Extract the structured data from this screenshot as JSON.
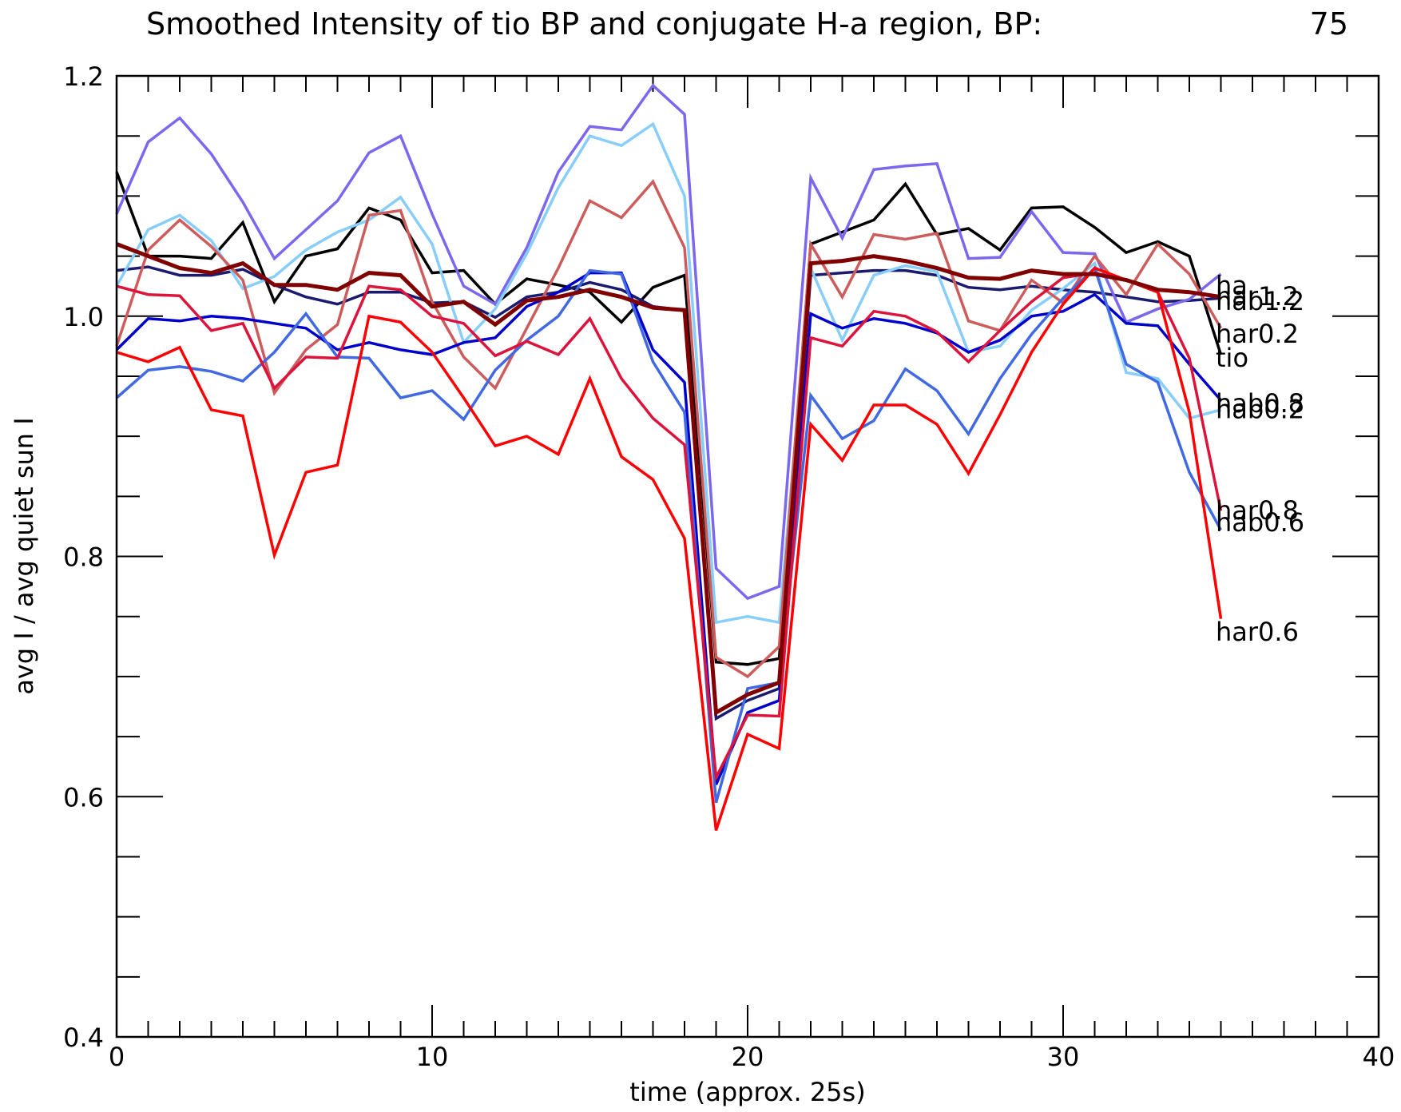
{
  "chart_data": {
    "type": "line",
    "title": "Smoothed Intensity of tio BP and conjugate H-a region, BP:",
    "title_value": "75",
    "xlabel": "time (approx. 25s)",
    "ylabel": "avg I / avg quiet sun I",
    "xlim": [
      0,
      40
    ],
    "ylim": [
      0.4,
      1.2
    ],
    "x_tick_labels": [
      "0",
      "10",
      "20",
      "30",
      "40"
    ],
    "y_tick_labels": [
      "0.4",
      "0.6",
      "0.8",
      "1.0",
      "1.2"
    ],
    "grid": false,
    "legend": "labels at line ends (right)",
    "x": [
      0,
      1,
      2,
      3,
      4,
      5,
      6,
      7,
      8,
      9,
      10,
      11,
      12,
      13,
      14,
      15,
      16,
      17,
      18,
      19,
      20,
      21,
      22,
      23,
      24,
      25,
      26,
      27,
      28,
      29,
      30,
      31,
      32,
      33,
      34,
      35
    ],
    "series": [
      {
        "name": "tio",
        "color": "#000000",
        "values": [
          1.12,
          1.05,
          1.05,
          1.048,
          1.078,
          1.012,
          1.05,
          1.056,
          1.09,
          1.08,
          1.036,
          1.038,
          1.01,
          1.031,
          1.026,
          1.02,
          0.995,
          1.024,
          1.034,
          0.712,
          0.71,
          0.715,
          1.06,
          1.07,
          1.08,
          1.11,
          1.068,
          1.073,
          1.055,
          1.09,
          1.091,
          1.074,
          1.053,
          1.062,
          1.05,
          0.968
        ]
      },
      {
        "name": "hab1.2",
        "color": "#1a1a6e",
        "values": [
          1.038,
          1.041,
          1.034,
          1.034,
          1.039,
          1.026,
          1.016,
          1.01,
          1.02,
          1.02,
          1.011,
          1.012,
          0.999,
          1.016,
          1.02,
          1.028,
          1.022,
          1.008,
          1.005,
          0.665,
          0.68,
          0.69,
          1.034,
          1.036,
          1.038,
          1.038,
          1.034,
          1.024,
          1.022,
          1.025,
          1.022,
          1.02,
          1.016,
          1.012,
          1.013,
          1.015
        ]
      },
      {
        "name": "ha",
        "color": "#7b68ee",
        "values": [
          1.085,
          1.145,
          1.165,
          1.135,
          1.095,
          1.048,
          1.072,
          1.096,
          1.136,
          1.15,
          1.085,
          1.025,
          1.01,
          1.057,
          1.12,
          1.158,
          1.155,
          1.192,
          1.168,
          0.79,
          0.765,
          0.775,
          1.115,
          1.065,
          1.122,
          1.125,
          1.127,
          1.048,
          1.049,
          1.087,
          1.053,
          1.052,
          0.995,
          1.006,
          1.014,
          1.035
        ]
      },
      {
        "name": "hab0.2",
        "color": "#87cefa",
        "values": [
          1.025,
          1.072,
          1.084,
          1.063,
          1.023,
          1.033,
          1.055,
          1.07,
          1.08,
          1.099,
          1.06,
          0.978,
          1.006,
          1.052,
          1.107,
          1.15,
          1.142,
          1.16,
          1.1,
          0.745,
          0.75,
          0.745,
          1.04,
          0.98,
          1.034,
          1.042,
          1.037,
          0.97,
          0.975,
          1.005,
          1.023,
          1.044,
          0.953,
          0.948,
          0.915,
          0.922
        ]
      },
      {
        "name": "har0.2",
        "color": "#cd5c5c",
        "values": [
          0.975,
          1.055,
          1.08,
          1.058,
          1.03,
          0.936,
          0.972,
          0.993,
          1.084,
          1.088,
          1.012,
          0.966,
          0.94,
          0.99,
          1.04,
          1.096,
          1.082,
          1.112,
          1.057,
          0.716,
          0.7,
          0.725,
          1.06,
          1.016,
          1.068,
          1.064,
          1.069,
          0.996,
          0.988,
          1.03,
          1.011,
          1.05,
          1.018,
          1.06,
          1.035,
          0.99
        ]
      },
      {
        "name": "hab0.8",
        "color": "#0000cd",
        "values": [
          0.972,
          0.998,
          0.996,
          1.0,
          0.998,
          0.994,
          0.99,
          0.972,
          0.978,
          0.972,
          0.968,
          0.978,
          0.982,
          1.008,
          1.02,
          1.036,
          1.036,
          0.972,
          0.945,
          0.61,
          0.67,
          0.68,
          1.002,
          0.99,
          0.998,
          0.994,
          0.986,
          0.97,
          0.98,
          1.0,
          1.004,
          1.018,
          0.994,
          0.992,
          0.96,
          0.93
        ]
      },
      {
        "name": "hab0.6",
        "color": "#4169e1",
        "values": [
          0.932,
          0.955,
          0.958,
          0.954,
          0.946,
          0.97,
          1.002,
          0.966,
          0.965,
          0.932,
          0.938,
          0.914,
          0.955,
          0.98,
          1.0,
          1.038,
          1.035,
          0.962,
          0.92,
          0.595,
          0.69,
          0.695,
          0.934,
          0.898,
          0.913,
          0.956,
          0.938,
          0.902,
          0.948,
          0.985,
          1.015,
          1.04,
          0.96,
          0.945,
          0.87,
          0.822
        ]
      },
      {
        "name": "har0.8",
        "color": "#dc143c",
        "values": [
          1.025,
          1.018,
          1.017,
          0.988,
          0.994,
          0.94,
          0.966,
          0.965,
          1.025,
          1.022,
          1.0,
          0.994,
          0.967,
          0.979,
          0.968,
          0.998,
          0.948,
          0.915,
          0.893,
          0.616,
          0.668,
          0.667,
          0.982,
          0.975,
          1.004,
          1.0,
          0.987,
          0.962,
          0.988,
          1.012,
          1.032,
          1.036,
          1.03,
          1.02,
          0.965,
          0.838
        ]
      },
      {
        "name": "har0.6",
        "color": "#ff0000",
        "values": [
          0.97,
          0.962,
          0.974,
          0.922,
          0.917,
          0.801,
          0.87,
          0.876,
          1.0,
          0.995,
          0.97,
          0.932,
          0.892,
          0.9,
          0.885,
          0.948,
          0.883,
          0.864,
          0.815,
          0.572,
          0.652,
          0.64,
          0.91,
          0.88,
          0.926,
          0.926,
          0.91,
          0.869,
          0.918,
          0.97,
          1.01,
          1.04,
          1.03,
          1.02,
          0.92,
          0.748
        ]
      },
      {
        "name": "har1.2",
        "color": "#800000",
        "values": [
          1.06,
          1.05,
          1.04,
          1.036,
          1.044,
          1.026,
          1.026,
          1.022,
          1.036,
          1.034,
          1.008,
          1.012,
          0.993,
          1.013,
          1.016,
          1.022,
          1.016,
          1.007,
          1.005,
          0.67,
          0.685,
          0.695,
          1.044,
          1.046,
          1.05,
          1.046,
          1.04,
          1.032,
          1.031,
          1.038,
          1.035,
          1.035,
          1.03,
          1.022,
          1.02,
          1.016
        ]
      }
    ],
    "end_labels": [
      {
        "text": "ha",
        "value": 1.018
      },
      {
        "text": "har1.2",
        "value": 1.009
      },
      {
        "text": "hab1.2",
        "value": 1.005
      },
      {
        "text": "har0.2",
        "value": 0.978
      },
      {
        "text": "tio",
        "value": 0.958
      },
      {
        "text": "hab0.8",
        "value": 0.92
      },
      {
        "text": "hab0.2",
        "value": 0.915
      },
      {
        "text": "har0.8",
        "value": 0.831
      },
      {
        "text": "hab0.6",
        "value": 0.821
      },
      {
        "text": "har0.6",
        "value": 0.73
      }
    ]
  }
}
